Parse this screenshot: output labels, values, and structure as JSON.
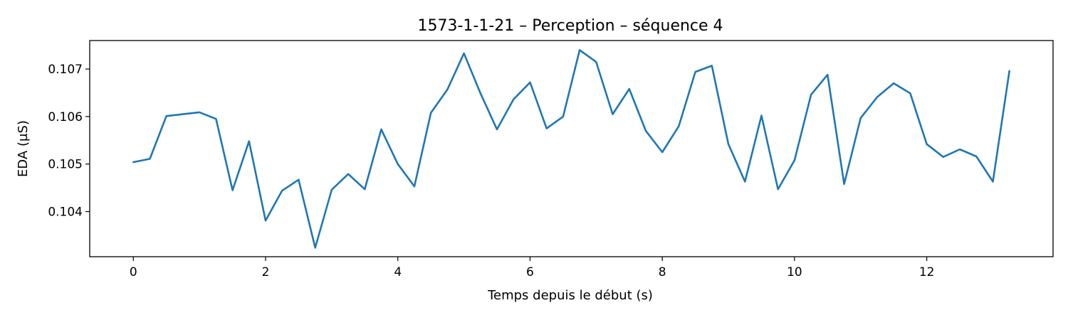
{
  "chart_data": {
    "type": "line",
    "title": "1573-1-1-21 – Perception – séquence 4",
    "xlabel": "Temps depuis le début (s)",
    "ylabel": "EDA (µS)",
    "xlim": [
      -0.66,
      13.91
    ],
    "ylim": [
      0.10305,
      0.1076
    ],
    "xticks": [
      0,
      2,
      4,
      6,
      8,
      10,
      12
    ],
    "xtick_labels": [
      "0",
      "2",
      "4",
      "6",
      "8",
      "10",
      "12"
    ],
    "yticks": [
      0.104,
      0.105,
      0.106,
      0.107
    ],
    "ytick_labels": [
      "0.104",
      "0.105",
      "0.106",
      "0.107"
    ],
    "grid": false,
    "legend": "none",
    "series": [
      {
        "color": "#1f77b4",
        "x": [
          0,
          0.25,
          0.5,
          0.75,
          1,
          1.25,
          1.5,
          1.75,
          2,
          2.25,
          2.5,
          2.75,
          3,
          3.25,
          3.5,
          3.75,
          4,
          4.25,
          4.5,
          4.75,
          5,
          5.25,
          5.5,
          5.75,
          6,
          6.25,
          6.5,
          6.75,
          7,
          7.25,
          7.5,
          7.75,
          8,
          8.25,
          8.5,
          8.75,
          9,
          9.25,
          9.5,
          9.75,
          10,
          10.25,
          10.5,
          10.75,
          11,
          11.25,
          11.5,
          11.75,
          12,
          12.25,
          12.5,
          12.75,
          13,
          13.25
        ],
        "y": [
          0.10504,
          0.10511,
          0.10601,
          0.10605,
          0.10609,
          0.10595,
          0.10445,
          0.10548,
          0.10381,
          0.10444,
          0.10467,
          0.10324,
          0.10446,
          0.10479,
          0.10447,
          0.10573,
          0.105,
          0.10453,
          0.10608,
          0.10657,
          0.10733,
          0.10649,
          0.10573,
          0.10636,
          0.10672,
          0.10575,
          0.106,
          0.1074,
          0.10715,
          0.10605,
          0.10658,
          0.1057,
          0.10525,
          0.1058,
          0.10694,
          0.10707,
          0.10542,
          0.10463,
          0.10602,
          0.10447,
          0.10508,
          0.10646,
          0.10688,
          0.10458,
          0.10597,
          0.10641,
          0.1067,
          0.10649,
          0.10542,
          0.10515,
          0.10531,
          0.10516,
          0.10463,
          0.10696
        ]
      }
    ]
  }
}
